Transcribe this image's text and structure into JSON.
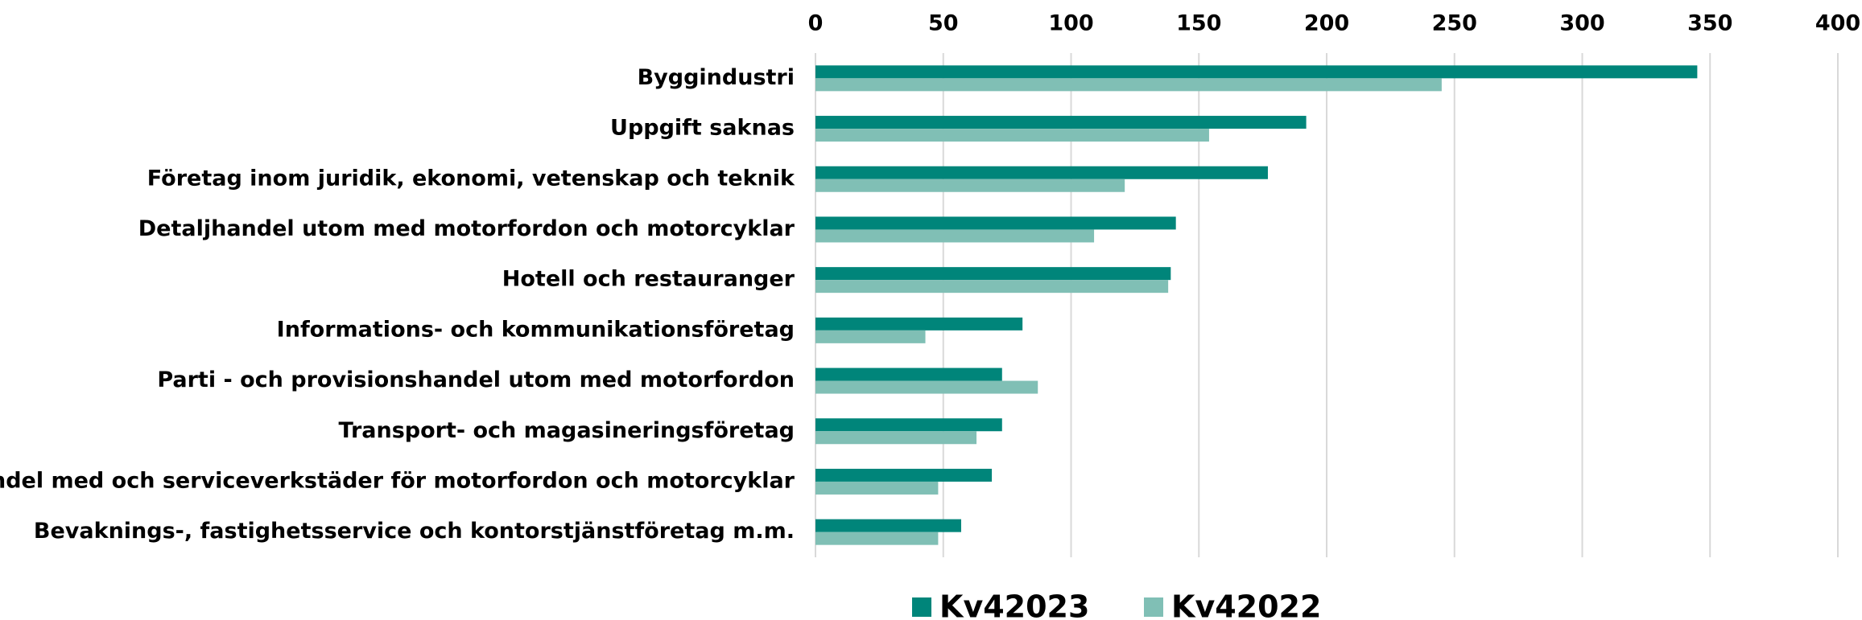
{
  "chart_data": {
    "type": "hbar",
    "categories": [
      "Byggindustri",
      "Uppgift saknas",
      "Företag inom juridik, ekonomi, vetenskap och teknik",
      "Detaljhandel utom med motorfordon och motorcyklar",
      "Hotell och restauranger",
      "Informations- och kommunikationsföretag",
      "Parti - och provisionshandel utom med motorfordon",
      "Transport- och magasineringsföretag",
      "Handel med och serviceverkstäder för motorfordon och motorcyklar",
      "Bevaknings-, fastighetsservice och kontorstjänstföretag m.m."
    ],
    "series": [
      {
        "name": "Kv42023",
        "color": "#00857a",
        "values": [
          345,
          192,
          177,
          141,
          139,
          81,
          73,
          73,
          69,
          57
        ]
      },
      {
        "name": "Kv42022",
        "color": "#80bfb5",
        "values": [
          245,
          154,
          121,
          109,
          138,
          43,
          87,
          63,
          48,
          48
        ]
      }
    ],
    "xlim": [
      0,
      400
    ],
    "xticks": [
      0,
      50,
      100,
      150,
      200,
      250,
      300,
      350,
      400
    ],
    "grid": true,
    "legend": "bottom"
  }
}
